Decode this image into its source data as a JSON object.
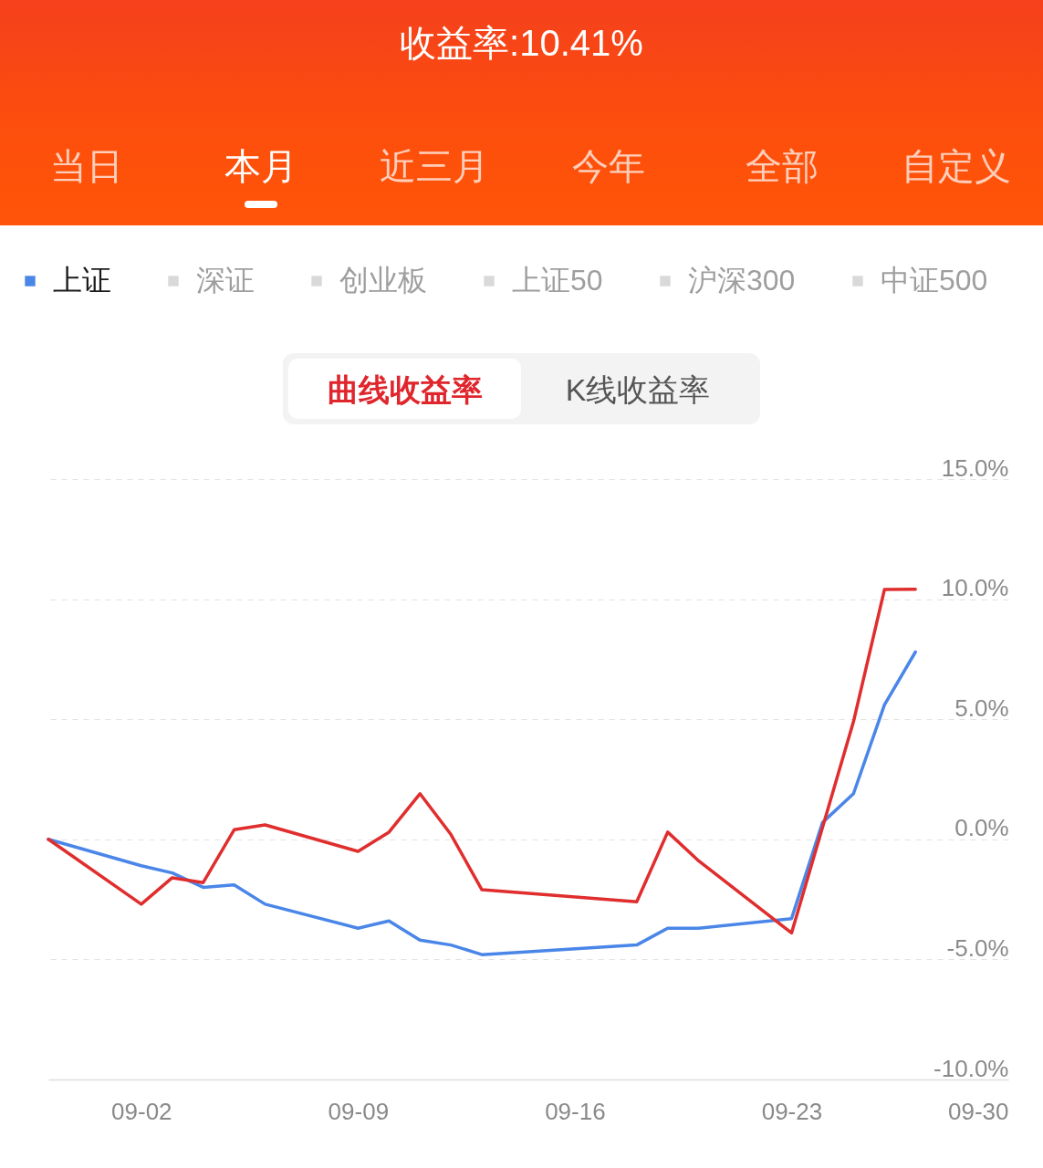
{
  "chart_data": {
    "type": "line",
    "title": "收益率:10.41%",
    "annotations": [
      "当日",
      "本月",
      "近三月",
      "今年",
      "全部",
      "自定义",
      "曲线收益率",
      "K线收益率"
    ],
    "x": [
      "--08-30",
      "--09-02",
      "--09-03",
      "--09-04",
      "--09-05",
      "--09-06",
      "--09-09",
      "--09-10",
      "--09-11",
      "--09-12",
      "--09-13",
      "--09-18",
      "--09-19",
      "--09-20",
      "--09-23",
      "--09-24",
      "--09-25",
      "--09-26",
      "--09-27"
    ],
    "series": [
      {
        "name": "上证",
        "color": "#4a86e8",
        "values": [
          0,
          -1.1,
          -1.4,
          -2.0,
          -1.9,
          -2.7,
          -3.7,
          -3.4,
          -4.2,
          -4.4,
          -4.8,
          -4.4,
          -3.7,
          -3.7,
          -3.3,
          0.7,
          1.9,
          5.6,
          7.8
        ]
      },
      {
        "name": "深证",
        "color": "#d9d9d9",
        "values": [
          null,
          null,
          null,
          null,
          null,
          null,
          null,
          null,
          null,
          null,
          null,
          null,
          null,
          null,
          null,
          null,
          null,
          null,
          null
        ]
      },
      {
        "name": "创业板",
        "color": "#d9d9d9",
        "values": [
          null,
          null,
          null,
          null,
          null,
          null,
          null,
          null,
          null,
          null,
          null,
          null,
          null,
          null,
          null,
          null,
          null,
          null,
          null
        ]
      },
      {
        "name": "上证50",
        "color": "#d9d9d9",
        "values": [
          null,
          null,
          null,
          null,
          null,
          null,
          null,
          null,
          null,
          null,
          null,
          null,
          null,
          null,
          null,
          null,
          null,
          null,
          null
        ]
      },
      {
        "name": "沪深300",
        "color": "#d9d9d9",
        "values": [
          null,
          null,
          null,
          null,
          null,
          null,
          null,
          null,
          null,
          null,
          null,
          null,
          null,
          null,
          null,
          null,
          null,
          null,
          null
        ]
      },
      {
        "name": "中证500",
        "color": "#d9d9d9",
        "values": [
          null,
          null,
          null,
          null,
          null,
          null,
          null,
          null,
          null,
          null,
          null,
          null,
          null,
          null,
          null,
          null,
          null,
          null,
          null
        ]
      },
      {
        "color": "#e02d2d",
        "values": [
          0,
          -2.7,
          -1.6,
          -1.8,
          0.4,
          0.6,
          -0.5,
          0.3,
          1.9,
          0.2,
          -2.1,
          -2.6,
          0.3,
          -0.9,
          -3.9,
          0.5,
          4.9,
          10.4,
          10.41
        ]
      }
    ],
    "xlim": [
      "--08-30",
      "--09-30"
    ],
    "xticks": [
      {
        "value": "--09-02",
        "label": "09-02"
      },
      {
        "value": "--09-09",
        "label": "09-09"
      },
      {
        "value": "--09-16",
        "label": "09-16"
      },
      {
        "value": "--09-23",
        "label": "09-23"
      },
      {
        "value": "--09-30",
        "label": "09-30"
      }
    ],
    "ylim": [
      -10,
      15
    ],
    "yticks": [
      {
        "value": -10,
        "label": "-10.0%"
      },
      {
        "value": -5,
        "label": "-5.0%"
      },
      {
        "value": 0,
        "label": "0.0%"
      },
      {
        "value": 5,
        "label": "5.0%"
      },
      {
        "value": 10,
        "label": "10.0%"
      },
      {
        "value": 15,
        "label": "15.0%"
      }
    ],
    "grid": "y",
    "legend": "top",
    "line_style": "solid"
  }
}
